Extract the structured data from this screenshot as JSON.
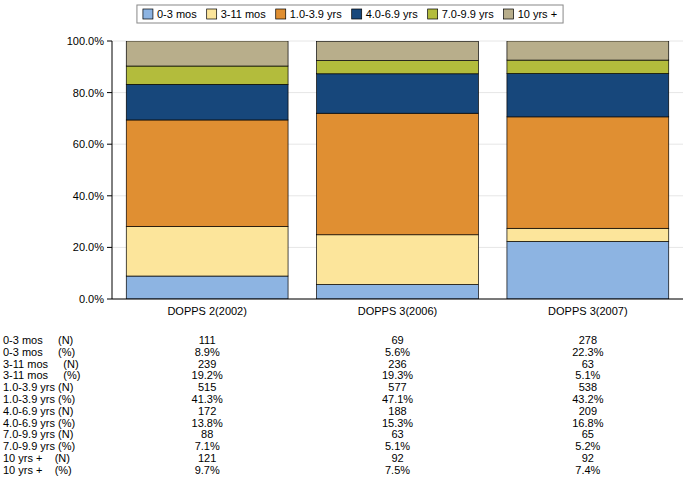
{
  "chart_data": {
    "type": "bar",
    "stacked": true,
    "grid": true,
    "legend": "top",
    "categories": [
      "DOPPS 2(2002)",
      "DOPPS 3(2006)",
      "DOPPS 3(2007)"
    ],
    "ylim": [
      0,
      100
    ],
    "yticks": [
      {
        "value": 0,
        "label": "0.0%"
      },
      {
        "value": 20,
        "label": "20.0%"
      },
      {
        "value": 40,
        "label": "40.0%"
      },
      {
        "value": 60,
        "label": "60.0%"
      },
      {
        "value": 80,
        "label": "80.0%"
      },
      {
        "value": 100,
        "label": "100.0%"
      }
    ],
    "series": [
      {
        "name": "0-3 mos",
        "color": "#8db4e2",
        "values": [
          8.9,
          5.6,
          22.3
        ],
        "value_labels": [
          "8.9%",
          "5.6%",
          "22.3%"
        ],
        "counts": [
          111,
          69,
          278
        ],
        "count_label": "0-3 mos     (N)",
        "percent_label": "0-3 mos     (%)"
      },
      {
        "name": "3-11 mos",
        "color": "#fce59b",
        "values": [
          19.2,
          19.3,
          5.1
        ],
        "value_labels": [
          "19.2%",
          "19.3%",
          "5.1%"
        ],
        "counts": [
          239,
          236,
          63
        ],
        "count_label": "3-11 mos     (N)",
        "percent_label": "3-11 mos     (%)"
      },
      {
        "name": "1.0-3.9 yrs",
        "color": "#e08f32",
        "values": [
          41.3,
          47.1,
          43.2
        ],
        "value_labels": [
          "41.3%",
          "47.1%",
          "43.2%"
        ],
        "counts": [
          515,
          577,
          538
        ],
        "count_label": "1.0-3.9 yrs (N)",
        "percent_label": "1.0-3.9 yrs (%)"
      },
      {
        "name": "4.0-6.9 yrs",
        "color": "#17477b",
        "values": [
          13.8,
          15.3,
          16.8
        ],
        "value_labels": [
          "13.8%",
          "15.3%",
          "16.8%"
        ],
        "counts": [
          172,
          188,
          209
        ],
        "count_label": "4.0-6.9 yrs (N)",
        "percent_label": "4.0-6.9 yrs (%)"
      },
      {
        "name": "7.0-9.9 yrs",
        "color": "#b3bc3c",
        "values": [
          7.1,
          5.1,
          5.2
        ],
        "value_labels": [
          "7.1%",
          "5.1%",
          "5.2%"
        ],
        "counts": [
          88,
          63,
          65
        ],
        "count_label": "7.0-9.9 yrs (N)",
        "percent_label": "7.0-9.9 yrs (%)"
      },
      {
        "name": "10 yrs +",
        "color": "#b8ae8b",
        "values": [
          9.7,
          7.5,
          7.4
        ],
        "value_labels": [
          "9.7%",
          "7.5%",
          "7.4%"
        ],
        "counts": [
          121,
          92,
          92
        ],
        "count_label": "10 yrs +    (N)",
        "percent_label": "10 yrs +    (%)"
      }
    ]
  }
}
